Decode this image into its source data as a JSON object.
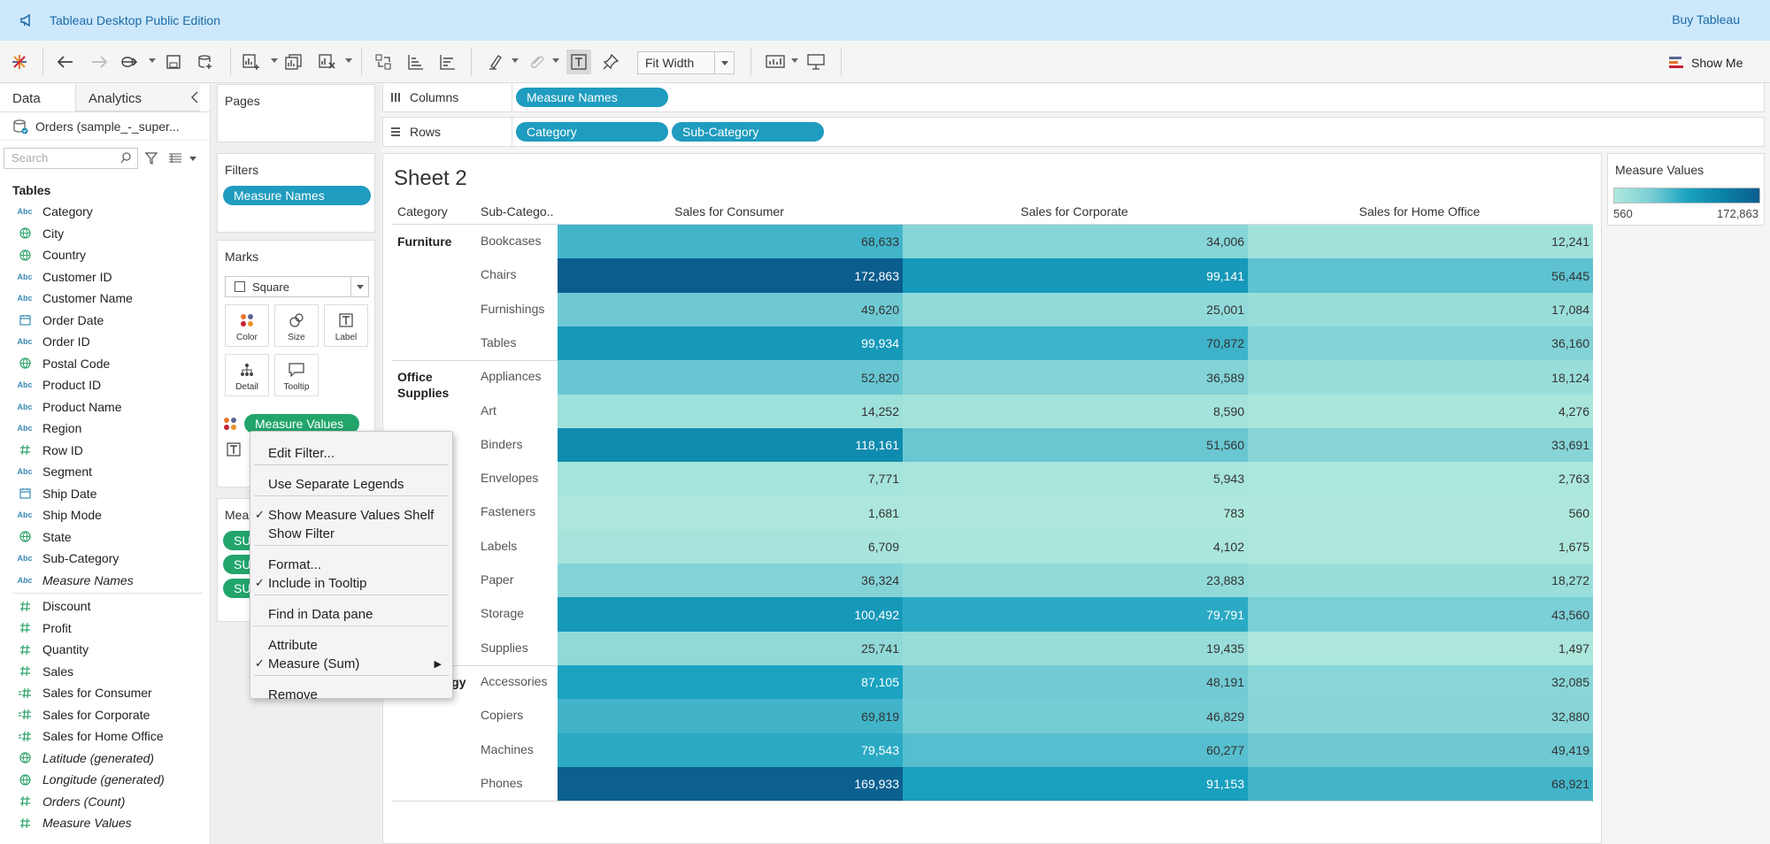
{
  "banner": {
    "title": "Tableau Desktop Public Edition",
    "buy": "Buy Tableau"
  },
  "toolbar": {
    "fit": "Fit Width",
    "show_me": "Show Me"
  },
  "datapane": {
    "tab_data": "Data",
    "tab_analytics": "Analytics",
    "datasource": "Orders (sample_-_super...",
    "search_placeholder": "Search",
    "tables_heading": "Tables",
    "dimensions": [
      {
        "name": "Category",
        "type": "abc"
      },
      {
        "name": "City",
        "type": "geo"
      },
      {
        "name": "Country",
        "type": "geo"
      },
      {
        "name": "Customer ID",
        "type": "abc"
      },
      {
        "name": "Customer Name",
        "type": "abc"
      },
      {
        "name": "Order Date",
        "type": "date"
      },
      {
        "name": "Order ID",
        "type": "abc"
      },
      {
        "name": "Postal Code",
        "type": "geo"
      },
      {
        "name": "Product ID",
        "type": "abc"
      },
      {
        "name": "Product Name",
        "type": "abc"
      },
      {
        "name": "Region",
        "type": "abc"
      },
      {
        "name": "Row ID",
        "type": "num"
      },
      {
        "name": "Segment",
        "type": "abc"
      },
      {
        "name": "Ship Date",
        "type": "date"
      },
      {
        "name": "Ship Mode",
        "type": "abc"
      },
      {
        "name": "State",
        "type": "geo"
      },
      {
        "name": "Sub-Category",
        "type": "abc"
      },
      {
        "name": "Measure Names",
        "type": "abc",
        "italic": true
      }
    ],
    "measures": [
      {
        "name": "Discount",
        "type": "num"
      },
      {
        "name": "Profit",
        "type": "num"
      },
      {
        "name": "Quantity",
        "type": "num"
      },
      {
        "name": "Sales",
        "type": "num"
      },
      {
        "name": "Sales for Consumer",
        "type": "calc"
      },
      {
        "name": "Sales for Corporate",
        "type": "calc"
      },
      {
        "name": "Sales for Home Office",
        "type": "calc"
      },
      {
        "name": "Latitude (generated)",
        "type": "geo",
        "italic": true
      },
      {
        "name": "Longitude (generated)",
        "type": "geo",
        "italic": true
      },
      {
        "name": "Orders (Count)",
        "type": "num",
        "italic": true
      },
      {
        "name": "Measure Values",
        "type": "num",
        "italic": true
      }
    ]
  },
  "cards": {
    "pages": "Pages",
    "filters": "Filters",
    "filter_pill": "Measure Names",
    "marks": "Marks",
    "mark_type": "Square",
    "buttons": {
      "color": "Color",
      "size": "Size",
      "label": "Label",
      "detail": "Detail",
      "tooltip": "Tooltip"
    },
    "mv_pill": "Measure Values",
    "measure_values_card": "Meas",
    "su_pills": [
      "SU",
      "SU",
      "SU"
    ]
  },
  "shelves": {
    "columns": "Columns",
    "rows": "Rows",
    "col_pills": [
      "Measure Names"
    ],
    "row_pills": [
      "Category",
      "Sub-Category"
    ]
  },
  "sheet": {
    "title": "Sheet 2",
    "headers": {
      "category": "Category",
      "subcategory": "Sub-Catego..",
      "consumer": "Sales for Consumer",
      "corporate": "Sales for Corporate",
      "home": "Sales for Home Office"
    }
  },
  "legend": {
    "title": "Measure Values",
    "min": "560",
    "max": "172,863"
  },
  "chart_data": {
    "type": "heatmap",
    "title": "Sheet 2",
    "columns": [
      "Sales for Consumer",
      "Sales for Corporate",
      "Sales for Home Office"
    ],
    "color_range": [
      560,
      172863
    ],
    "groups": [
      {
        "category": "Furniture",
        "rows": [
          {
            "sub": "Bookcases",
            "values": [
              68633,
              34006,
              12241
            ]
          },
          {
            "sub": "Chairs",
            "values": [
              172863,
              99141,
              56445
            ]
          },
          {
            "sub": "Furnishings",
            "values": [
              49620,
              25001,
              17084
            ]
          },
          {
            "sub": "Tables",
            "values": [
              99934,
              70872,
              36160
            ]
          }
        ]
      },
      {
        "category": "Office Supplies",
        "rows": [
          {
            "sub": "Appliances",
            "values": [
              52820,
              36589,
              18124
            ]
          },
          {
            "sub": "Art",
            "values": [
              14252,
              8590,
              4276
            ]
          },
          {
            "sub": "Binders",
            "values": [
              118161,
              51560,
              33691
            ]
          },
          {
            "sub": "Envelopes",
            "values": [
              7771,
              5943,
              2763
            ]
          },
          {
            "sub": "Fasteners",
            "values": [
              1681,
              783,
              560
            ]
          },
          {
            "sub": "Labels",
            "values": [
              6709,
              4102,
              1675
            ]
          },
          {
            "sub": "Paper",
            "values": [
              36324,
              23883,
              18272
            ]
          },
          {
            "sub": "Storage",
            "values": [
              100492,
              79791,
              43560
            ]
          },
          {
            "sub": "Supplies",
            "values": [
              25741,
              19435,
              1497
            ]
          }
        ]
      },
      {
        "category": "Technology",
        "rows": [
          {
            "sub": "Accessories",
            "values": [
              87105,
              48191,
              32085
            ]
          },
          {
            "sub": "Copiers",
            "values": [
              69819,
              46829,
              32880
            ]
          },
          {
            "sub": "Machines",
            "values": [
              79543,
              60277,
              49419
            ]
          },
          {
            "sub": "Phones",
            "values": [
              169933,
              91153,
              68921
            ]
          }
        ]
      }
    ]
  },
  "context_menu": {
    "items": [
      {
        "label": "Edit Filter...",
        "checked": false
      },
      {
        "label": "Use Separate Legends",
        "checked": false
      },
      {
        "label": "Show Measure Values Shelf",
        "checked": true
      },
      {
        "label": "Show Filter",
        "checked": false
      },
      {
        "label": "Format...",
        "checked": false
      },
      {
        "label": "Include in Tooltip",
        "checked": true
      },
      {
        "label": "Find in Data pane",
        "checked": false
      },
      {
        "label": "Attribute",
        "checked": false
      },
      {
        "label": "Measure (Sum)",
        "checked": true,
        "submenu": true
      },
      {
        "label": "Remove",
        "checked": false
      }
    ]
  }
}
